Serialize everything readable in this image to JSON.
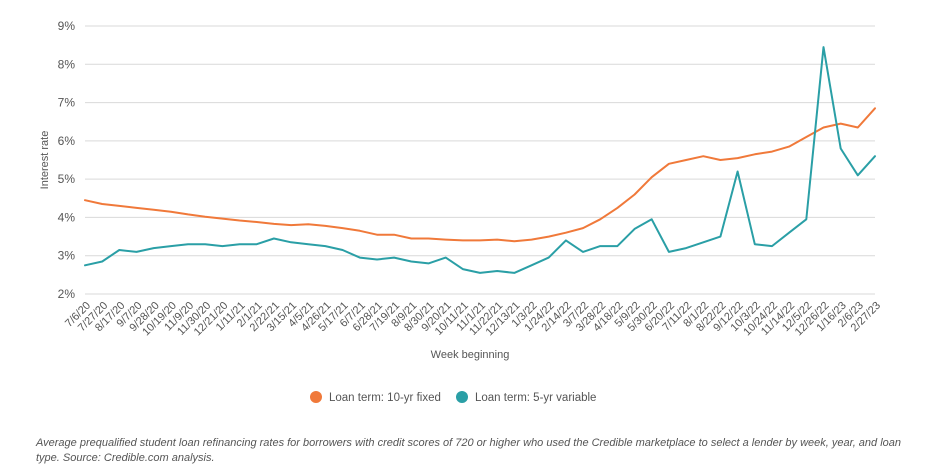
{
  "chart_data": {
    "type": "line",
    "title": "",
    "xlabel": "Week beginning",
    "ylabel": "Interest rate",
    "ylim": [
      2,
      9
    ],
    "yticks": [
      "2%",
      "3%",
      "4%",
      "5%",
      "6%",
      "7%",
      "8%",
      "9%"
    ],
    "grid": true,
    "legend_position": "bottom-center",
    "x_tick_labels": [
      "7/6/20",
      "7/27/20",
      "8/17/20",
      "9/7/20",
      "9/28/20",
      "10/19/20",
      "11/9/20",
      "11/30/20",
      "12/21/20",
      "1/11/21",
      "2/1/21",
      "2/22/21",
      "3/15/21",
      "4/5/21",
      "4/26/21",
      "5/17/21",
      "6/7/21",
      "6/28/21",
      "7/19/21",
      "8/9/21",
      "8/30/21",
      "9/20/21",
      "10/11/21",
      "11/1/21",
      "11/22/21",
      "12/13/21",
      "1/3/22",
      "1/24/22",
      "2/14/22",
      "3/7/22",
      "3/28/22",
      "4/18/22",
      "5/9/22",
      "5/30/22",
      "6/20/22",
      "7/11/22",
      "8/1/22",
      "8/22/22",
      "9/12/22",
      "10/3/22",
      "10/24/22",
      "11/14/22",
      "12/5/22",
      "12/26/22",
      "1/16/23",
      "2/6/23",
      "2/27/23"
    ],
    "series": [
      {
        "name": "Loan term: 10-yr fixed",
        "color": "#f0793a",
        "values": [
          4.45,
          4.35,
          4.3,
          4.25,
          4.2,
          4.15,
          4.08,
          4.02,
          3.97,
          3.92,
          3.88,
          3.83,
          3.8,
          3.82,
          3.78,
          3.72,
          3.65,
          3.55,
          3.55,
          3.45,
          3.45,
          3.42,
          3.4,
          3.4,
          3.42,
          3.38,
          3.42,
          3.5,
          3.6,
          3.72,
          3.95,
          4.25,
          4.6,
          5.05,
          5.4,
          5.5,
          5.6,
          5.5,
          5.55,
          5.65,
          5.72,
          5.85,
          6.1,
          6.35,
          6.45,
          6.35,
          6.85
        ]
      },
      {
        "name": "Loan term: 5-yr variable",
        "color": "#2a9fa6",
        "values": [
          2.75,
          2.85,
          3.15,
          3.1,
          3.2,
          3.25,
          3.3,
          3.3,
          3.25,
          3.3,
          3.3,
          3.45,
          3.35,
          3.3,
          3.25,
          3.15,
          2.95,
          2.9,
          2.95,
          2.85,
          2.8,
          2.95,
          2.65,
          2.55,
          2.6,
          2.55,
          2.75,
          2.95,
          3.4,
          3.1,
          3.25,
          3.25,
          3.7,
          3.95,
          3.1,
          3.2,
          3.35,
          3.5,
          5.2,
          3.3,
          3.25,
          3.6,
          3.95,
          8.45,
          5.8,
          5.1,
          5.6
        ]
      }
    ]
  },
  "caption": "Average prequalified student loan refinancing rates for borrowers with credit scores of 720 or higher who used the Credible marketplace to select a lender by week, year, and loan type. Source: Credible.com analysis."
}
